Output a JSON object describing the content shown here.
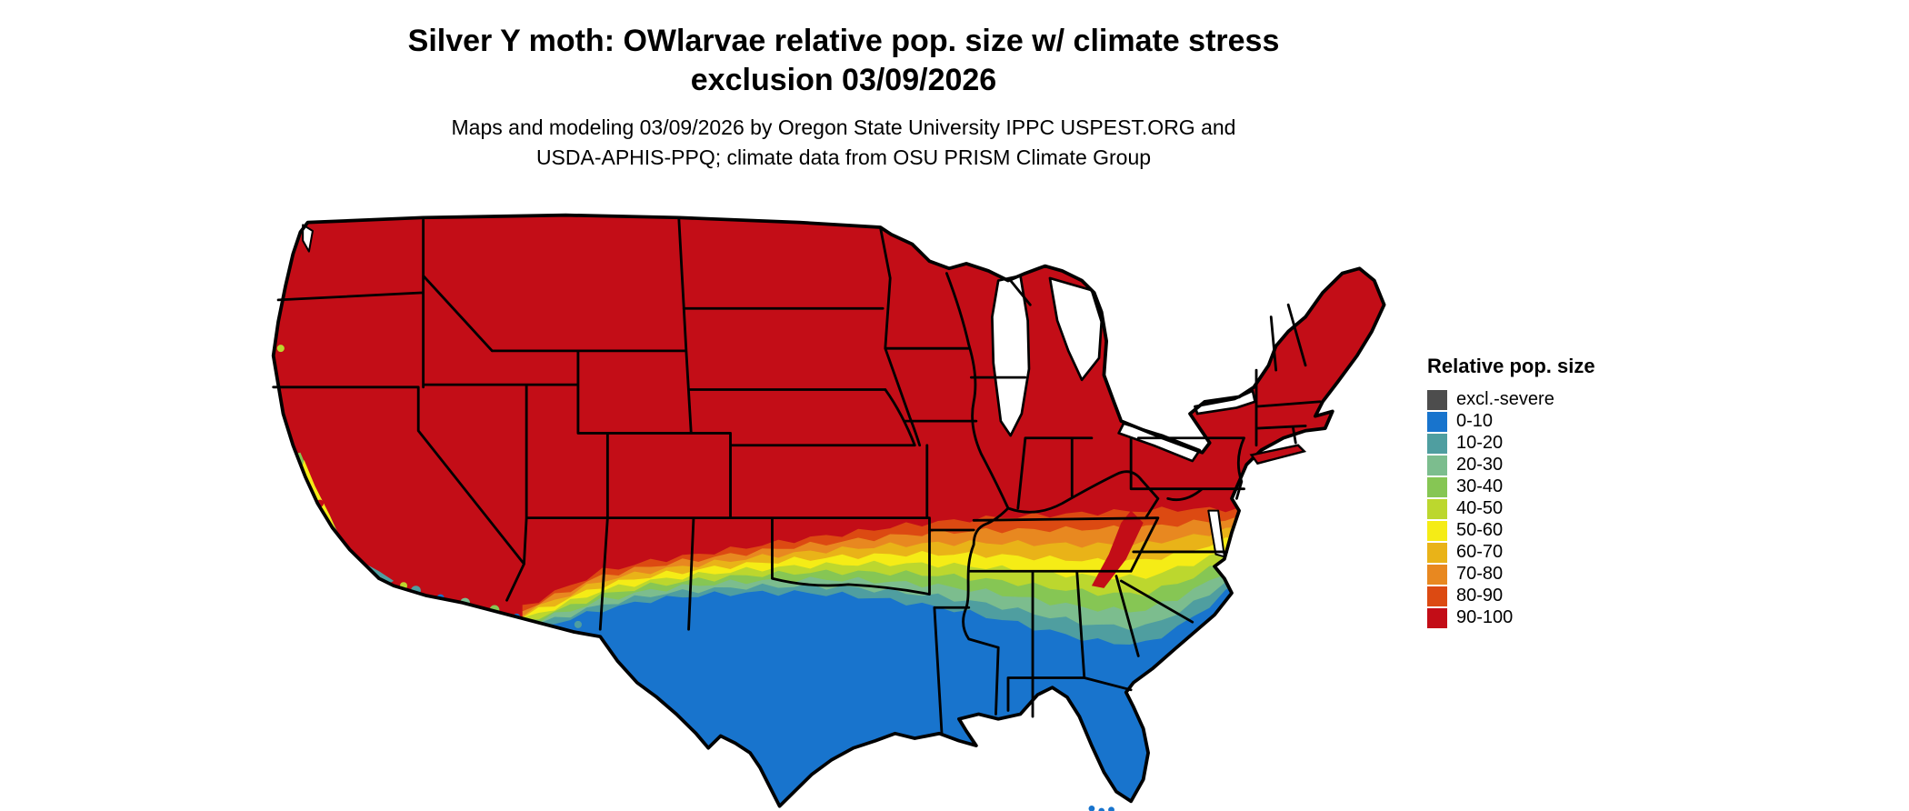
{
  "title": {
    "line1": "Silver Y moth: OWlarvae relative pop. size w/ climate stress",
    "line2": "exclusion 03/09/2026"
  },
  "subtitle": {
    "line1": "Maps and modeling 03/09/2026 by Oregon State University IPPC USPEST.ORG and",
    "line2": "USDA-APHIS-PPQ; climate data from OSU PRISM Climate Group"
  },
  "legend": {
    "title": "Relative pop. size",
    "entries": [
      {
        "label": "excl.-severe",
        "color": "#4d4d4d"
      },
      {
        "label": "0-10",
        "color": "#1874cd"
      },
      {
        "label": "10-20",
        "color": "#4f9ea0"
      },
      {
        "label": "20-30",
        "color": "#7cbd8e"
      },
      {
        "label": "30-40",
        "color": "#86c654"
      },
      {
        "label": "40-50",
        "color": "#bcd72e"
      },
      {
        "label": "50-60",
        "color": "#f5ec16"
      },
      {
        "label": "60-70",
        "color": "#e9b318"
      },
      {
        "label": "70-80",
        "color": "#e88820"
      },
      {
        "label": "80-90",
        "color": "#dc4a12"
      },
      {
        "label": "90-100",
        "color": "#c30d17"
      }
    ]
  },
  "map": {
    "base_class": "90-100",
    "outline_color": "#000000",
    "water_color": "#ffffff"
  }
}
